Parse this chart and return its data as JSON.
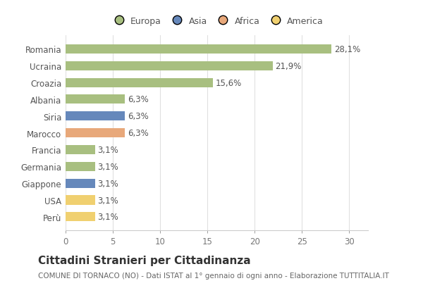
{
  "categories": [
    "Perù",
    "USA",
    "Giappone",
    "Germania",
    "Francia",
    "Marocco",
    "Siria",
    "Albania",
    "Croazia",
    "Ucraina",
    "Romania"
  ],
  "values": [
    3.1,
    3.1,
    3.1,
    3.1,
    3.1,
    6.3,
    6.3,
    6.3,
    15.6,
    21.9,
    28.1
  ],
  "labels": [
    "3,1%",
    "3,1%",
    "3,1%",
    "3,1%",
    "3,1%",
    "6,3%",
    "6,3%",
    "6,3%",
    "15,6%",
    "21,9%",
    "28,1%"
  ],
  "colors": [
    "#f0d070",
    "#f0d070",
    "#6688bb",
    "#a8bf80",
    "#a8bf80",
    "#e8a87a",
    "#6688bb",
    "#a8bf80",
    "#a8bf80",
    "#a8bf80",
    "#a8bf80"
  ],
  "legend_labels": [
    "Europa",
    "Asia",
    "Africa",
    "America"
  ],
  "legend_colors": [
    "#a8bf80",
    "#6688bb",
    "#e8a87a",
    "#f0d070"
  ],
  "xlim": [
    0,
    32
  ],
  "xticks": [
    0,
    5,
    10,
    15,
    20,
    25,
    30
  ],
  "title": "Cittadini Stranieri per Cittadinanza",
  "subtitle": "COMUNE DI TORNACO (NO) - Dati ISTAT al 1° gennaio di ogni anno - Elaborazione TUTTITALIA.IT",
  "background_color": "#ffffff",
  "bar_height": 0.55,
  "label_fontsize": 8.5,
  "title_fontsize": 11,
  "subtitle_fontsize": 7.5,
  "ytick_fontsize": 8.5,
  "xtick_fontsize": 8.5,
  "legend_fontsize": 9
}
